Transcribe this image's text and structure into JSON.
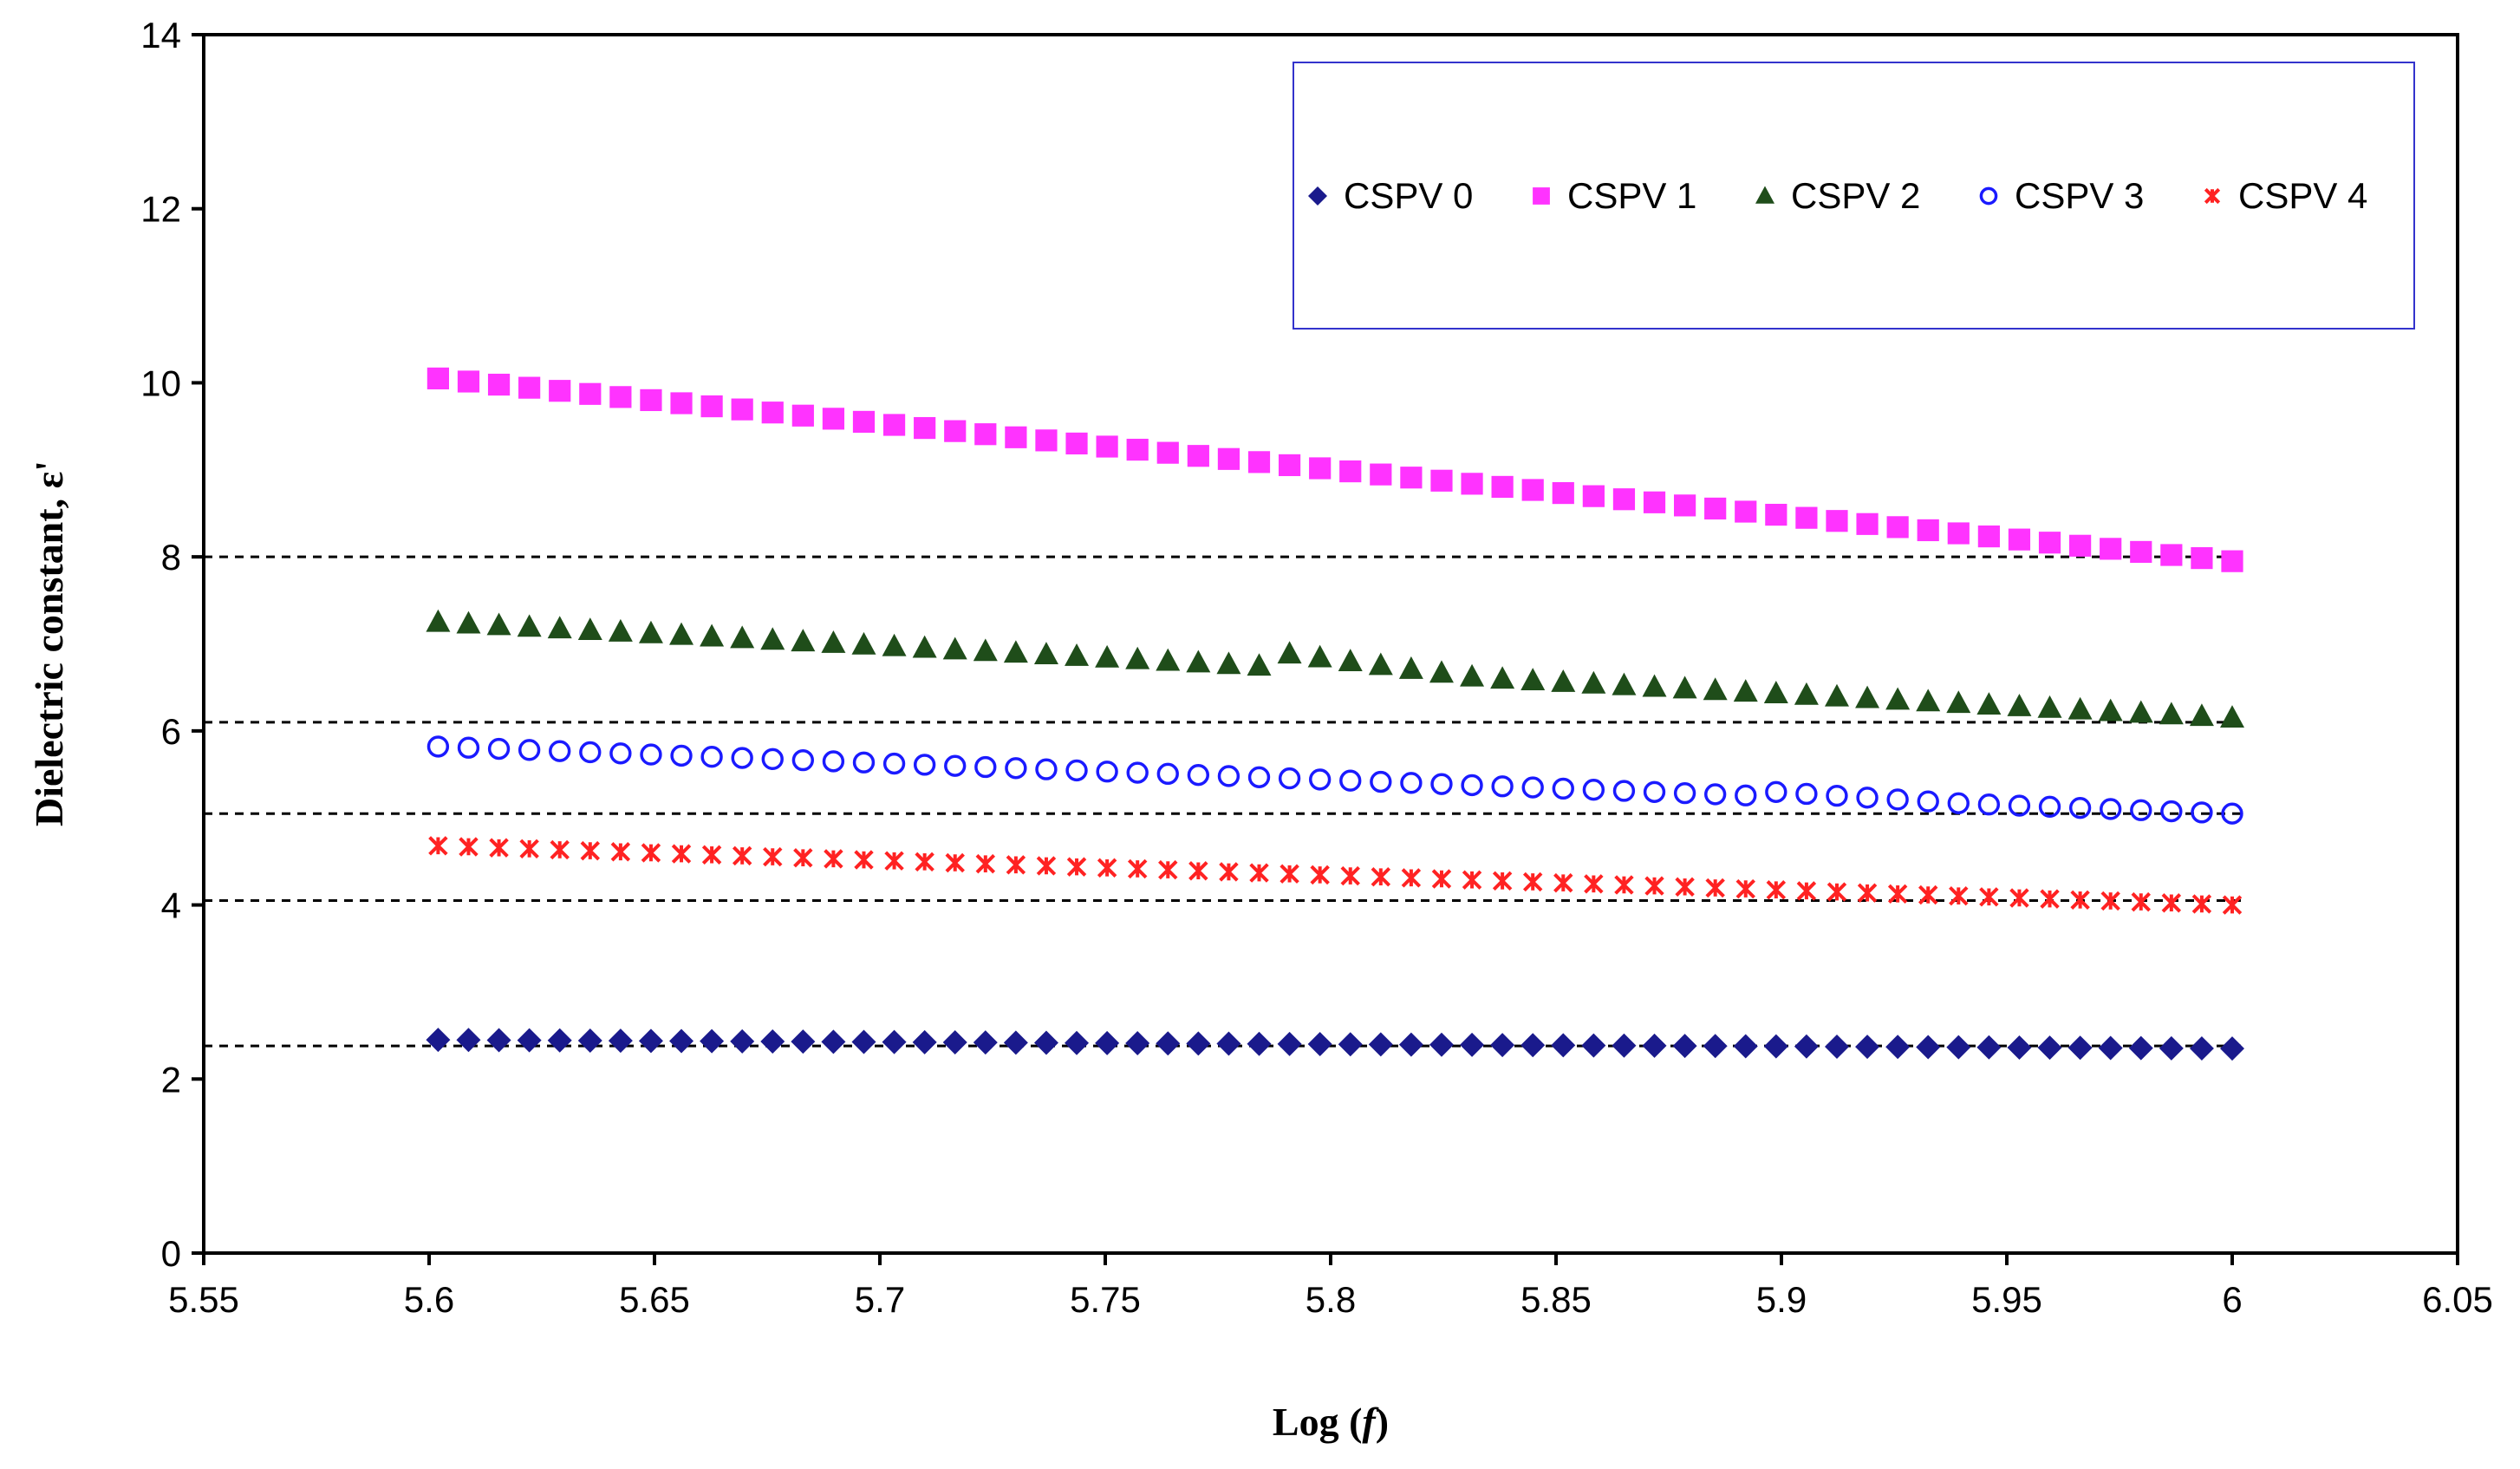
{
  "chart_data": {
    "type": "scatter",
    "title": "",
    "xlabel": "Log (",
    "xlabel_var": "f",
    "xlabel_end": ")",
    "ylabel": "Dielectric constant, ε'",
    "xlim": [
      5.55,
      6.05
    ],
    "ylim": [
      0,
      14
    ],
    "xticks": [
      5.55,
      5.6,
      5.65,
      5.7,
      5.75,
      5.8,
      5.85,
      5.9,
      5.95,
      6,
      6.05
    ],
    "xtick_labels": [
      "5.55",
      "5.6",
      "5.65",
      "5.7",
      "5.75",
      "5.8",
      "5.85",
      "5.9",
      "5.95",
      "6",
      "6.05"
    ],
    "yticks": [
      0,
      2,
      4,
      6,
      8,
      10,
      12,
      14
    ],
    "ytick_labels": [
      "0",
      "2",
      "4",
      "6",
      "8",
      "10",
      "12",
      "14"
    ],
    "x_start": 5.602,
    "x_end": 6.0,
    "n_points": 60,
    "series": [
      {
        "name": "CSPV 0",
        "marker": "diamond",
        "color": "#1a1a8c",
        "start": 2.45,
        "end": 2.35,
        "bump_at": null,
        "bump": 0
      },
      {
        "name": "CSPV 1",
        "marker": "square",
        "color": "#ff33ff",
        "start": 10.05,
        "end": 7.95,
        "bump_at": null,
        "bump": 0
      },
      {
        "name": "CSPV 2",
        "marker": "triangle",
        "color": "#1f4d1a",
        "start": 7.25,
        "end": 6.15,
        "bump_at": 0.46,
        "bump": 0.18
      },
      {
        "name": "CSPV 3",
        "marker": "circle",
        "color": "#1a1aff",
        "start": 5.82,
        "end": 5.05,
        "bump_at": 0.73,
        "bump": 0.06
      },
      {
        "name": "CSPV 4",
        "marker": "cross",
        "color": "#ff2222",
        "start": 4.68,
        "end": 4.0,
        "bump_at": null,
        "bump": 0
      }
    ],
    "reference_lines": [
      8.0,
      6.1,
      5.05,
      4.05,
      2.38
    ]
  }
}
